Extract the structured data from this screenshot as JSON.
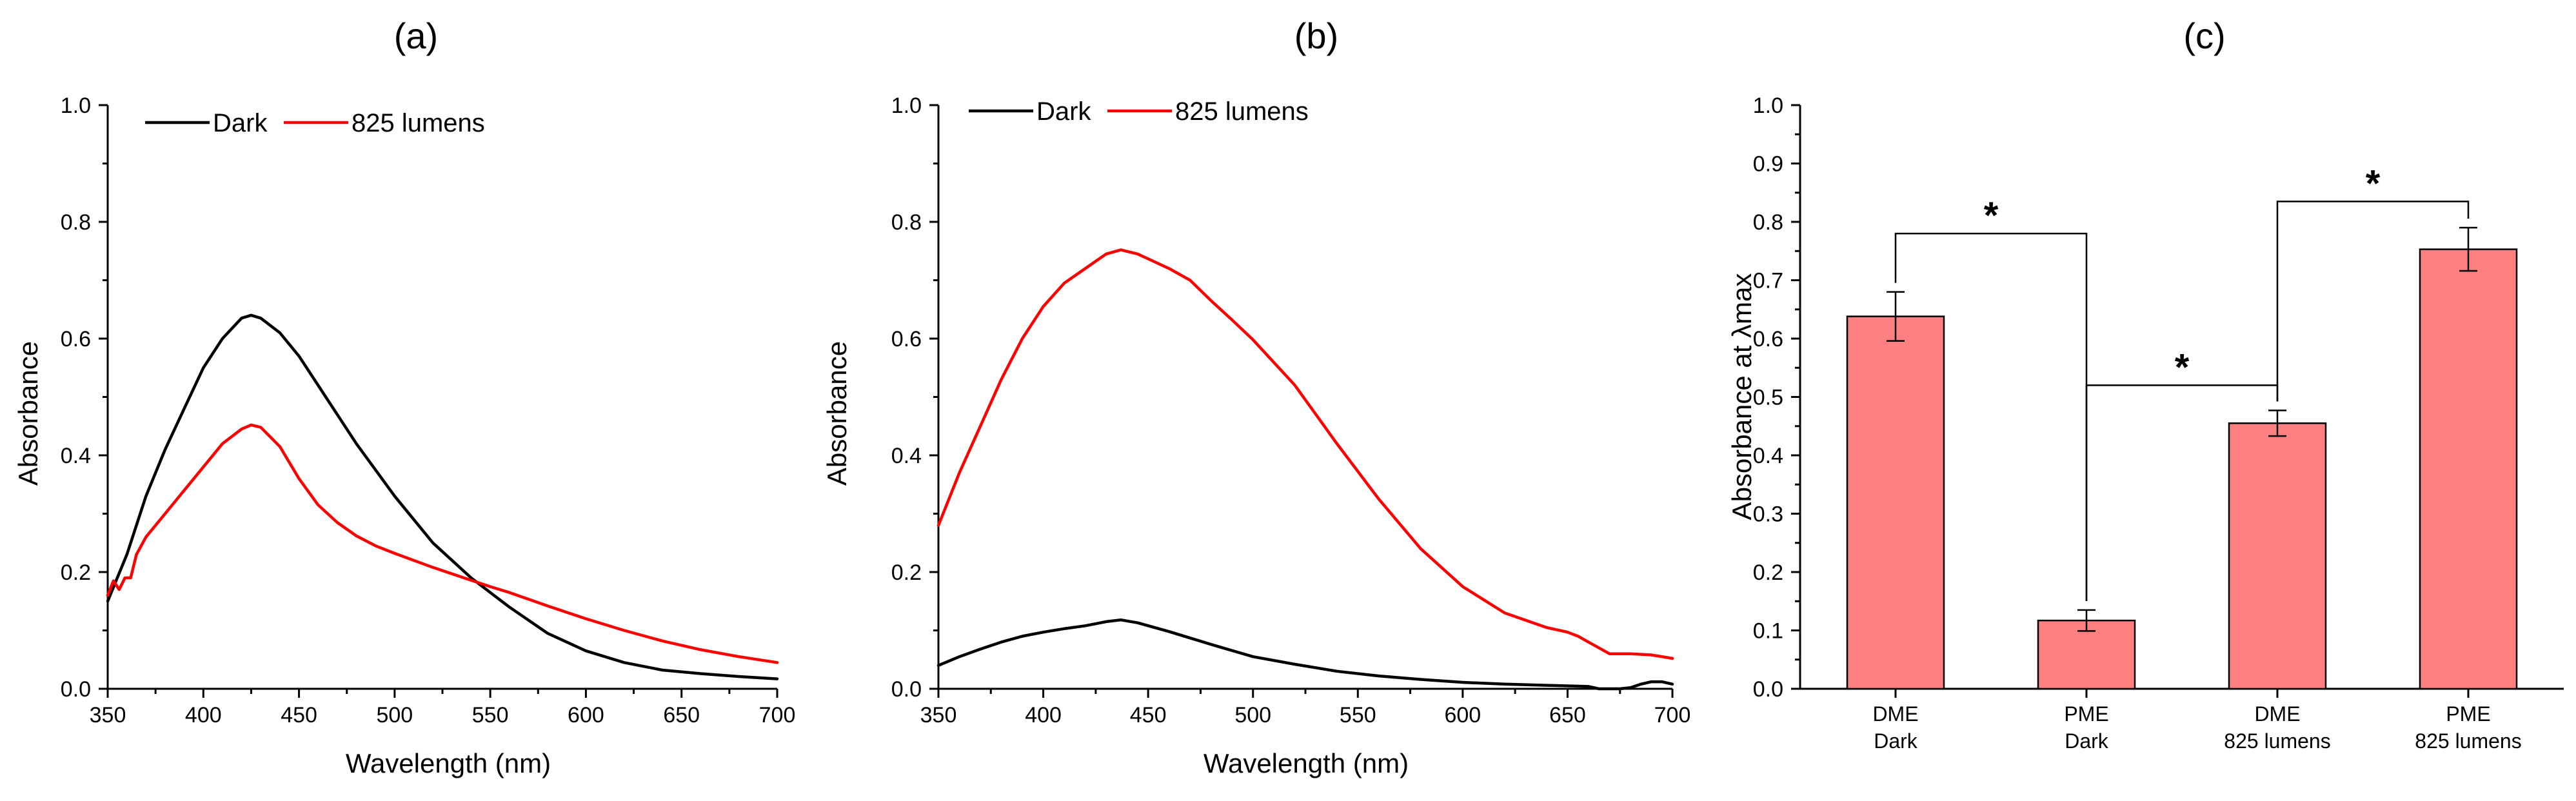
{
  "colors": {
    "dark": "#000000",
    "light": "#ff0000",
    "bar_fill": "#ff8080",
    "axis": "#000000"
  },
  "chart_data": [
    {
      "panel": "(a)",
      "type": "line",
      "xlabel": "Wavelength (nm)",
      "ylabel": "Absorbance",
      "xlim": [
        350,
        700
      ],
      "ylim": [
        0,
        1.0
      ],
      "xticks": [
        350,
        400,
        450,
        500,
        550,
        600,
        650,
        700
      ],
      "yticks": [
        0.0,
        0.2,
        0.4,
        0.6,
        0.8,
        1.0
      ],
      "ytick_labels": [
        "0.0",
        "0.2",
        "0.4",
        "0.6",
        "0.8",
        "1.0"
      ],
      "legend": {
        "placement": "top-left",
        "entries": [
          "Dark",
          "825 lumens"
        ]
      },
      "series": [
        {
          "name": "Dark",
          "color": "#000000",
          "x": [
            350,
            355,
            360,
            365,
            370,
            380,
            390,
            400,
            410,
            420,
            425,
            430,
            440,
            450,
            460,
            470,
            480,
            490,
            500,
            520,
            540,
            550,
            560,
            580,
            600,
            620,
            640,
            660,
            680,
            700
          ],
          "y": [
            0.15,
            0.19,
            0.23,
            0.28,
            0.33,
            0.41,
            0.48,
            0.55,
            0.6,
            0.635,
            0.64,
            0.635,
            0.61,
            0.57,
            0.52,
            0.47,
            0.42,
            0.375,
            0.33,
            0.25,
            0.19,
            0.165,
            0.14,
            0.095,
            0.065,
            0.045,
            0.032,
            0.026,
            0.021,
            0.017
          ]
        },
        {
          "name": "825 lumens",
          "color": "#ff0000",
          "x": [
            350,
            353,
            356,
            359,
            362,
            365,
            370,
            380,
            390,
            400,
            410,
            420,
            425,
            430,
            440,
            450,
            460,
            470,
            480,
            490,
            500,
            520,
            540,
            550,
            560,
            580,
            600,
            620,
            640,
            660,
            680,
            700
          ],
          "y": [
            0.16,
            0.185,
            0.17,
            0.19,
            0.19,
            0.23,
            0.26,
            0.3,
            0.34,
            0.38,
            0.42,
            0.445,
            0.452,
            0.448,
            0.415,
            0.36,
            0.315,
            0.285,
            0.262,
            0.245,
            0.232,
            0.208,
            0.186,
            0.175,
            0.165,
            0.142,
            0.12,
            0.1,
            0.082,
            0.067,
            0.055,
            0.045
          ]
        }
      ]
    },
    {
      "panel": "(b)",
      "type": "line",
      "xlabel": "Wavelength (nm)",
      "ylabel": "Absorbance",
      "xlim": [
        350,
        700
      ],
      "ylim": [
        0,
        1.0
      ],
      "xticks": [
        350,
        400,
        450,
        500,
        550,
        600,
        650,
        700
      ],
      "yticks": [
        0.0,
        0.2,
        0.4,
        0.6,
        0.8,
        1.0
      ],
      "ytick_labels": [
        "0.0",
        "0.2",
        "0.4",
        "0.6",
        "0.8",
        "1.0"
      ],
      "legend": {
        "placement": "top-left",
        "entries": [
          "Dark",
          "825 lumens"
        ]
      },
      "series": [
        {
          "name": "Dark",
          "color": "#000000",
          "x": [
            350,
            360,
            370,
            380,
            390,
            400,
            410,
            420,
            430,
            437,
            445,
            460,
            480,
            500,
            520,
            540,
            560,
            580,
            600,
            620,
            640,
            660,
            665,
            670,
            675,
            680,
            685,
            690,
            695,
            700
          ],
          "y": [
            0.04,
            0.055,
            0.068,
            0.08,
            0.09,
            0.097,
            0.103,
            0.108,
            0.115,
            0.118,
            0.113,
            0.098,
            0.076,
            0.055,
            0.042,
            0.03,
            0.022,
            0.016,
            0.011,
            0.008,
            0.006,
            0.004,
            0.0,
            0.0,
            0.0,
            0.002,
            0.008,
            0.012,
            0.012,
            0.008
          ]
        },
        {
          "name": "825 lumens",
          "color": "#ff0000",
          "x": [
            350,
            360,
            370,
            380,
            390,
            400,
            410,
            420,
            430,
            437,
            445,
            460,
            470,
            480,
            490,
            500,
            520,
            540,
            560,
            580,
            600,
            620,
            640,
            650,
            655,
            660,
            670,
            680,
            690,
            700
          ],
          "y": [
            0.28,
            0.37,
            0.45,
            0.53,
            0.6,
            0.655,
            0.695,
            0.72,
            0.745,
            0.752,
            0.745,
            0.72,
            0.7,
            0.665,
            0.632,
            0.598,
            0.52,
            0.42,
            0.325,
            0.24,
            0.175,
            0.13,
            0.105,
            0.097,
            0.09,
            0.08,
            0.06,
            0.06,
            0.058,
            0.052
          ]
        }
      ]
    },
    {
      "panel": "(c)",
      "type": "bar",
      "ylabel": "Absorbance at λmax",
      "ylim": [
        0,
        1.0
      ],
      "yticks": [
        0.0,
        0.1,
        0.2,
        0.3,
        0.4,
        0.5,
        0.6,
        0.7,
        0.8,
        0.9,
        1.0
      ],
      "ytick_labels": [
        "0.0",
        "0.1",
        "0.2",
        "0.3",
        "0.4",
        "0.5",
        "0.6",
        "0.7",
        "0.8",
        "0.9",
        "1.0"
      ],
      "categories": [
        [
          "DME",
          "Dark"
        ],
        [
          "PME",
          "Dark"
        ],
        [
          "DME",
          "825 lumens"
        ],
        [
          "PME",
          "825 lumens"
        ]
      ],
      "values": [
        0.638,
        0.117,
        0.455,
        0.753
      ],
      "errors": [
        0.042,
        0.018,
        0.022,
        0.037
      ],
      "significance": [
        {
          "from": 0,
          "to": 1,
          "label": "*",
          "level": 0.78
        },
        {
          "from": 1,
          "to": 2,
          "label": "*",
          "level": 0.52
        },
        {
          "from": 2,
          "to": 3,
          "label": "*",
          "level": 0.835
        }
      ]
    }
  ]
}
